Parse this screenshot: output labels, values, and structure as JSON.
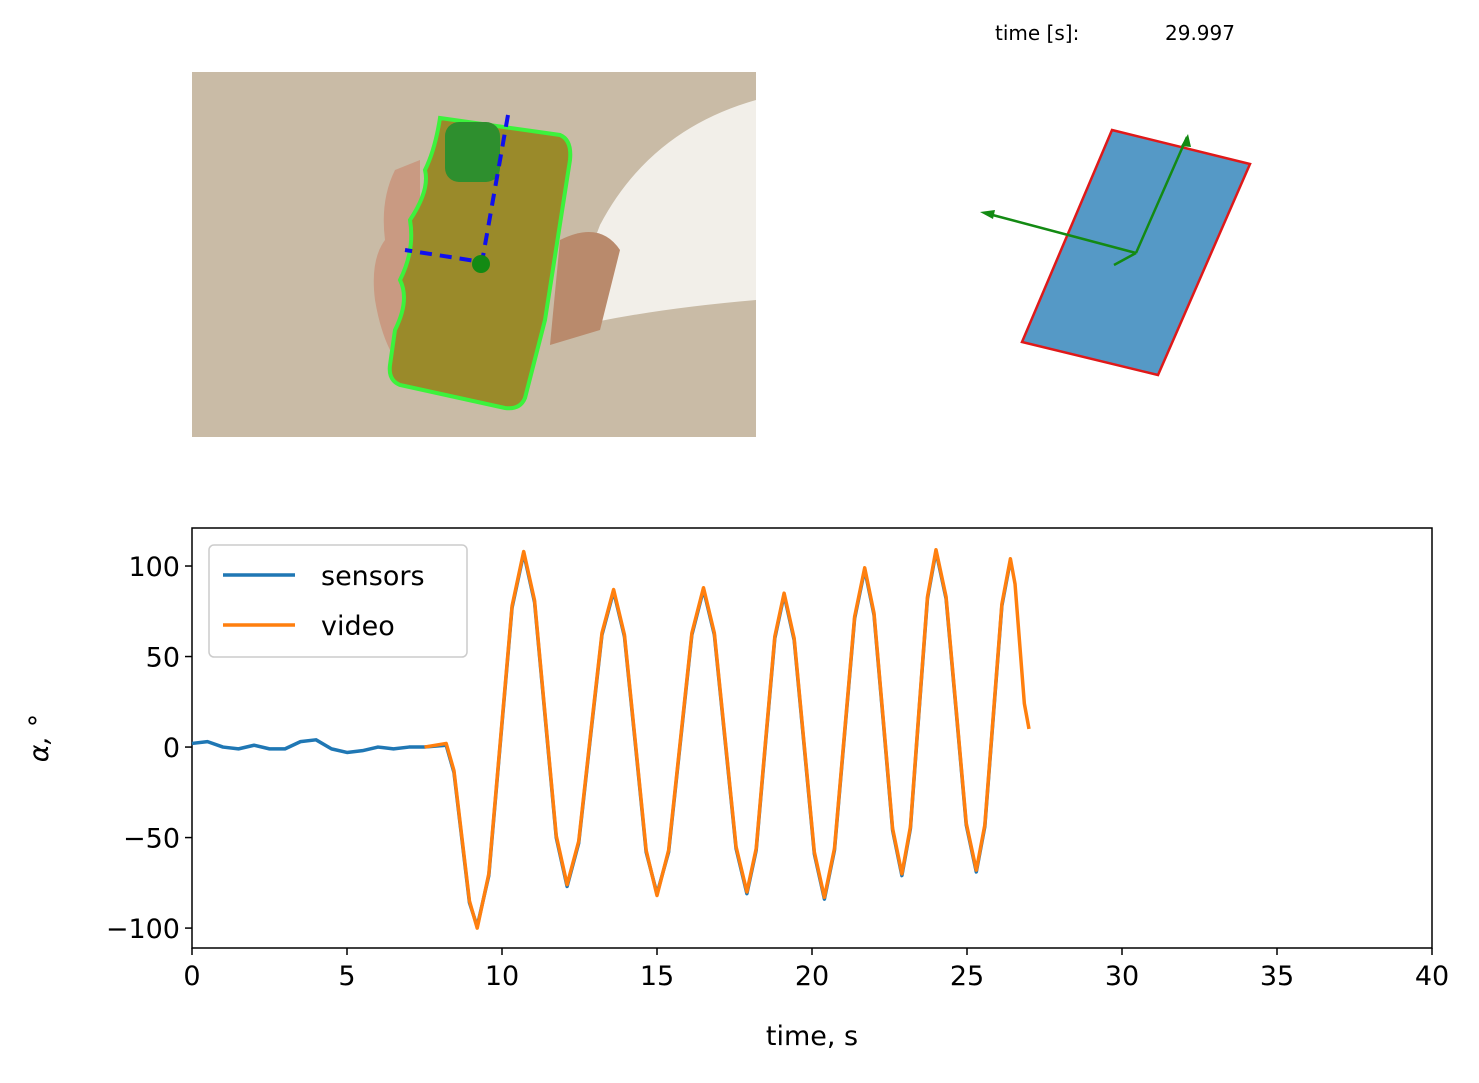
{
  "time_label": "time [s]:",
  "time_value": 29.997,
  "chart_data": {
    "type": "line",
    "xlabel": "time, s",
    "ylabel": "α, °",
    "x": [
      0,
      0.5,
      1,
      1.5,
      2,
      2.5,
      3,
      3.5,
      4,
      4.5,
      5,
      5.5,
      6,
      6.5,
      7,
      7.5,
      8.2,
      8.45,
      8.7,
      8.95,
      9.2,
      9.575,
      9.95,
      10.325,
      10.7,
      11.05,
      11.4,
      11.75,
      12.1,
      12.475,
      12.85,
      13.225,
      13.6,
      13.95,
      14.3,
      14.65,
      15.0,
      15.375,
      15.75,
      16.125,
      16.5,
      16.85,
      17.2,
      17.55,
      17.9,
      18.2,
      18.5,
      18.8,
      19.1,
      19.425,
      19.75,
      20.075,
      20.4,
      20.725,
      21.05,
      21.375,
      21.7,
      22.0,
      22.3,
      22.6,
      22.9,
      23.175,
      23.45,
      23.725,
      24.0,
      24.325,
      24.65,
      24.975,
      25.3,
      25.575,
      25.85,
      26.125,
      26.4,
      26.55,
      26.7,
      26.85,
      27.0
    ],
    "series": [
      {
        "name": "sensors",
        "color": "#1f77b4",
        "values": [
          2,
          3,
          0,
          -1,
          1,
          -1,
          -1,
          3,
          4,
          -1,
          -3,
          -2,
          0,
          -1,
          0,
          0,
          1,
          -14,
          -50,
          -86,
          -99,
          -71,
          3,
          77,
          107,
          80,
          15,
          -50,
          -77,
          -53,
          5,
          62,
          86,
          61,
          2,
          -58,
          -81,
          -58,
          2,
          62,
          87,
          62,
          3,
          -56,
          -81,
          -57,
          2,
          60,
          84,
          59,
          0,
          -59,
          -84,
          -57,
          7,
          71,
          98,
          73,
          14,
          -46,
          -71,
          -45,
          19,
          82,
          108,
          82,
          20,
          -43,
          -69,
          -44,
          17,
          78,
          103,
          null,
          null,
          null,
          null
        ]
      },
      {
        "name": "video",
        "color": "#ff7f0e",
        "values": [
          null,
          null,
          null,
          null,
          null,
          null,
          null,
          null,
          null,
          null,
          null,
          null,
          null,
          null,
          null,
          0,
          2,
          -13,
          -49,
          -85,
          -100,
          -70,
          4,
          78,
          108,
          81,
          16,
          -49,
          -76,
          -52,
          6,
          63,
          87,
          62,
          3,
          -57,
          -82,
          -57,
          3,
          63,
          88,
          63,
          4,
          -55,
          -80,
          -56,
          3,
          61,
          85,
          60,
          1,
          -58,
          -83,
          -56,
          8,
          72,
          99,
          74,
          15,
          -45,
          -70,
          -44,
          20,
          83,
          109,
          83,
          21,
          -42,
          -68,
          -43,
          18,
          79,
          104,
          90,
          57,
          24,
          10
        ]
      }
    ],
    "xlim": [
      0,
      40
    ],
    "ylim": [
      -111,
      121
    ],
    "xticks": [
      0,
      5,
      10,
      15,
      20,
      25,
      30,
      35,
      40
    ],
    "yticks": [
      {
        "value": -100,
        "label": "−100"
      },
      {
        "value": -50,
        "label": "−50"
      },
      0,
      50,
      100
    ],
    "legend": "upper left"
  }
}
